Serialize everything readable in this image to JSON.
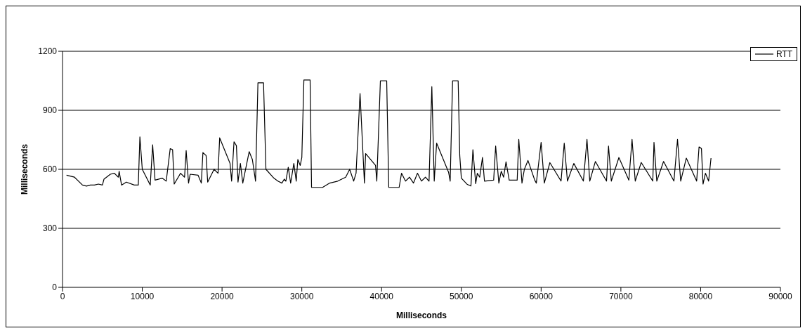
{
  "chart_data": {
    "type": "line",
    "xlabel": "Milliseconds",
    "ylabel": "Milliseconds",
    "xlim": [
      0,
      90000
    ],
    "xticks": [
      0,
      10000,
      20000,
      30000,
      40000,
      50000,
      60000,
      70000,
      80000,
      90000
    ],
    "ylim": [
      0,
      1200
    ],
    "yticks": [
      0,
      300,
      600,
      900,
      1200
    ],
    "grid": "y",
    "legend": "top right",
    "marker": "none",
    "line_style": "solid",
    "x": [
      500,
      1500,
      2500,
      3000,
      3500,
      4000,
      4500,
      5000,
      5200,
      6000,
      6500,
      7000,
      7100,
      7400,
      8000,
      9000,
      9500,
      9700,
      10000,
      11000,
      11300,
      11600,
      12500,
      13000,
      13500,
      13800,
      14000,
      14800,
      15300,
      15500,
      15800,
      16000,
      17000,
      17400,
      17600,
      18000,
      18200,
      19000,
      19500,
      19700,
      21000,
      21200,
      21500,
      21800,
      22000,
      22300,
      22600,
      23000,
      23400,
      23800,
      24200,
      24500,
      25200,
      25500,
      26500,
      27000,
      27500,
      27800,
      28000,
      28300,
      28600,
      29000,
      29300,
      29500,
      29800,
      30000,
      30260,
      31040,
      31220,
      32600,
      33500,
      34500,
      35500,
      36000,
      36500,
      36800,
      37300,
      37850,
      38000,
      39240,
      39400,
      39850,
      40640,
      40900,
      42200,
      42500,
      43000,
      43500,
      44000,
      44500,
      45000,
      45500,
      45950,
      46300,
      46600,
      46900,
      48400,
      48600,
      48900,
      49600,
      49800,
      50000,
      50750,
      51200,
      51450,
      51800,
      52000,
      52300,
      52650,
      52900,
      54050,
      54300,
      54700,
      55000,
      55300,
      55600,
      56000,
      57000,
      57200,
      57600,
      57900,
      58350,
      59200,
      59400,
      60000,
      60400,
      61100,
      62500,
      62900,
      63300,
      64100,
      65300,
      65750,
      66100,
      66800,
      68200,
      68450,
      68800,
      69750,
      71000,
      71400,
      71800,
      72550,
      74000,
      74150,
      74500,
      75350,
      76000,
      76650,
      77100,
      77500,
      78200,
      79500,
      79800,
      80100,
      80300,
      80600,
      81000,
      81300
    ],
    "series": [
      {
        "name": "RTT",
        "color": "#000000",
        "values": [
          570,
          560,
          520,
          515,
          520,
          520,
          525,
          520,
          550,
          575,
          580,
          560,
          590,
          520,
          535,
          520,
          520,
          765,
          600,
          520,
          725,
          545,
          555,
          540,
          705,
          700,
          525,
          580,
          560,
          695,
          530,
          575,
          570,
          530,
          685,
          670,
          535,
          600,
          580,
          760,
          630,
          540,
          740,
          720,
          535,
          630,
          530,
          610,
          690,
          650,
          540,
          1040,
          1040,
          600,
          555,
          540,
          530,
          550,
          540,
          610,
          530,
          630,
          540,
          650,
          620,
          660,
          1054,
          1054,
          508,
          508,
          530,
          540,
          560,
          600,
          540,
          580,
          985,
          530,
          680,
          620,
          540,
          1050,
          1050,
          508,
          508,
          580,
          540,
          560,
          530,
          580,
          540,
          560,
          540,
          1020,
          540,
          733,
          585,
          540,
          1050,
          1050,
          670,
          555,
          523,
          515,
          700,
          527,
          580,
          560,
          660,
          540,
          545,
          718,
          530,
          590,
          560,
          638,
          545,
          545,
          752,
          530,
          600,
          645,
          545,
          530,
          737,
          530,
          634,
          540,
          733,
          540,
          630,
          540,
          752,
          540,
          640,
          540,
          718,
          540,
          660,
          545,
          752,
          540,
          635,
          540,
          737,
          540,
          640,
          590,
          540,
          752,
          540,
          657,
          540,
          714,
          705,
          525,
          580,
          540,
          657
        ]
      }
    ]
  }
}
